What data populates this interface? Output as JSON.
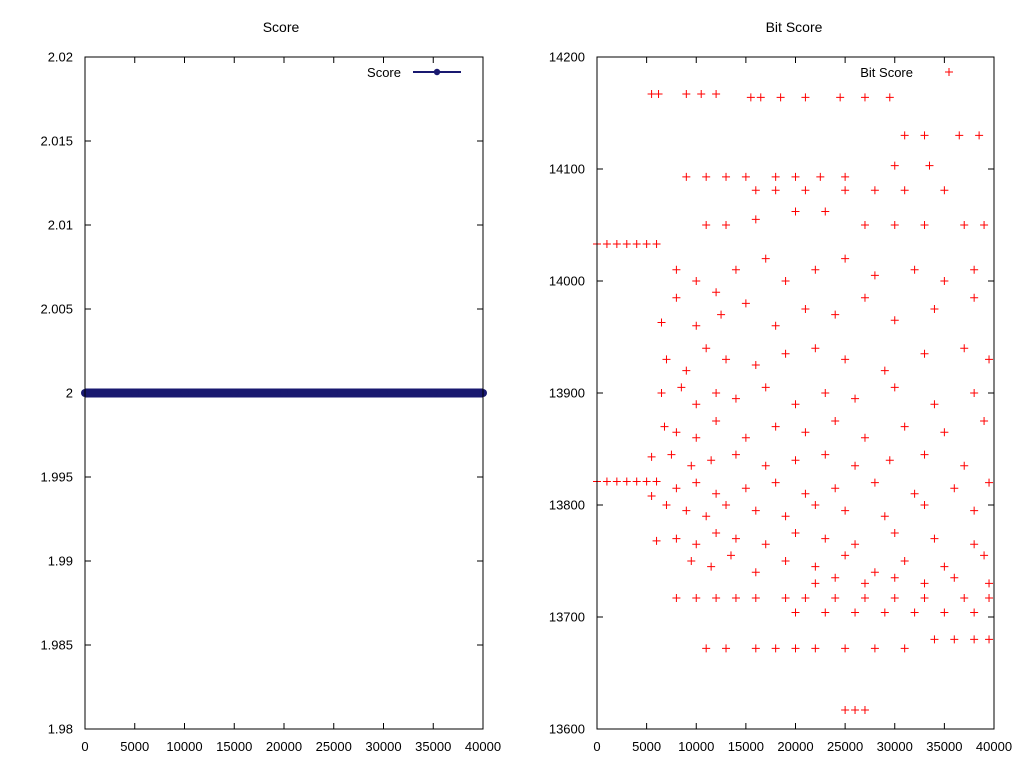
{
  "chart_data": [
    {
      "type": "line",
      "title": "Score",
      "xlabel": "",
      "ylabel": "",
      "xlim": [
        0,
        40000
      ],
      "ylim": [
        1.98,
        2.02
      ],
      "x_ticks": [
        "0",
        "5000",
        "10000",
        "15000",
        "20000",
        "25000",
        "30000",
        "35000",
        "40000"
      ],
      "y_ticks": [
        "1.98",
        "1.985",
        "1.99",
        "1.995",
        "2",
        "2.005",
        "2.01",
        "2.015",
        "2.02"
      ],
      "grid": false,
      "legend": "top-right",
      "series": [
        {
          "name": "Score",
          "color": "#191970",
          "marker": "filled-circle",
          "x": [
            0,
            5000,
            10000,
            15000,
            20000,
            25000,
            30000,
            35000,
            40000
          ],
          "y": [
            2,
            2,
            2,
            2,
            2,
            2,
            2,
            2,
            2
          ]
        }
      ]
    },
    {
      "type": "scatter",
      "title": "Bit Score",
      "xlabel": "",
      "ylabel": "",
      "xlim": [
        0,
        40000
      ],
      "ylim": [
        13600,
        14200
      ],
      "x_ticks": [
        "0",
        "5000",
        "10000",
        "15000",
        "20000",
        "25000",
        "30000",
        "35000",
        "40000"
      ],
      "y_ticks": [
        "13600",
        "13700",
        "13800",
        "13900",
        "14000",
        "14100",
        "14200"
      ],
      "grid": false,
      "legend": "top-right",
      "series": [
        {
          "name": "Bit Score",
          "color": "#ff0000",
          "marker": "plus",
          "points": [
            [
              0,
              14033
            ],
            [
              1000,
              14033
            ],
            [
              2000,
              14033
            ],
            [
              3000,
              14033
            ],
            [
              4000,
              14033
            ],
            [
              5000,
              14033
            ],
            [
              6000,
              14033
            ],
            [
              0,
              13821
            ],
            [
              1000,
              13821
            ],
            [
              2000,
              13821
            ],
            [
              3000,
              13821
            ],
            [
              4000,
              13821
            ],
            [
              5000,
              13821
            ],
            [
              6000,
              13821
            ],
            [
              5500,
              14167
            ],
            [
              6200,
              14167
            ],
            [
              9000,
              14167
            ],
            [
              10500,
              14167
            ],
            [
              12000,
              14167
            ],
            [
              15500,
              14164
            ],
            [
              16500,
              14164
            ],
            [
              18500,
              14164
            ],
            [
              21000,
              14164
            ],
            [
              24500,
              14164
            ],
            [
              27000,
              14164
            ],
            [
              29500,
              14164
            ],
            [
              31000,
              14130
            ],
            [
              33000,
              14130
            ],
            [
              36500,
              14130
            ],
            [
              38500,
              14130
            ],
            [
              9000,
              14093
            ],
            [
              11000,
              14093
            ],
            [
              13000,
              14093
            ],
            [
              15000,
              14093
            ],
            [
              18000,
              14093
            ],
            [
              20000,
              14093
            ],
            [
              22500,
              14093
            ],
            [
              25000,
              14093
            ],
            [
              30000,
              14103
            ],
            [
              33500,
              14103
            ],
            [
              16000,
              14081
            ],
            [
              18000,
              14081
            ],
            [
              21000,
              14081
            ],
            [
              25000,
              14081
            ],
            [
              28000,
              14081
            ],
            [
              31000,
              14081
            ],
            [
              35000,
              14081
            ],
            [
              11000,
              14050
            ],
            [
              13000,
              14050
            ],
            [
              16000,
              14055
            ],
            [
              20000,
              14062
            ],
            [
              23000,
              14062
            ],
            [
              27000,
              14050
            ],
            [
              30000,
              14050
            ],
            [
              33000,
              14050
            ],
            [
              37000,
              14050
            ],
            [
              39000,
              14050
            ],
            [
              8000,
              14010
            ],
            [
              10000,
              14000
            ],
            [
              12000,
              13990
            ],
            [
              14000,
              14010
            ],
            [
              17000,
              14020
            ],
            [
              19000,
              14000
            ],
            [
              22000,
              14010
            ],
            [
              25000,
              14020
            ],
            [
              28000,
              14005
            ],
            [
              32000,
              14010
            ],
            [
              35000,
              14000
            ],
            [
              38000,
              14010
            ],
            [
              6500,
              13963
            ],
            [
              8000,
              13985
            ],
            [
              10000,
              13960
            ],
            [
              12500,
              13970
            ],
            [
              15000,
              13980
            ],
            [
              18000,
              13960
            ],
            [
              21000,
              13975
            ],
            [
              24000,
              13970
            ],
            [
              27000,
              13985
            ],
            [
              30000,
              13965
            ],
            [
              34000,
              13975
            ],
            [
              38000,
              13985
            ],
            [
              7000,
              13930
            ],
            [
              9000,
              13920
            ],
            [
              11000,
              13940
            ],
            [
              13000,
              13930
            ],
            [
              16000,
              13925
            ],
            [
              19000,
              13935
            ],
            [
              22000,
              13940
            ],
            [
              25000,
              13930
            ],
            [
              29000,
              13920
            ],
            [
              33000,
              13935
            ],
            [
              37000,
              13940
            ],
            [
              39500,
              13930
            ],
            [
              6500,
              13900
            ],
            [
              8500,
              13905
            ],
            [
              10000,
              13890
            ],
            [
              12000,
              13900
            ],
            [
              14000,
              13895
            ],
            [
              17000,
              13905
            ],
            [
              20000,
              13890
            ],
            [
              23000,
              13900
            ],
            [
              26000,
              13895
            ],
            [
              30000,
              13905
            ],
            [
              34000,
              13890
            ],
            [
              38000,
              13900
            ],
            [
              6800,
              13870
            ],
            [
              8000,
              13865
            ],
            [
              10000,
              13860
            ],
            [
              12000,
              13875
            ],
            [
              15000,
              13860
            ],
            [
              18000,
              13870
            ],
            [
              21000,
              13865
            ],
            [
              24000,
              13875
            ],
            [
              27000,
              13860
            ],
            [
              31000,
              13870
            ],
            [
              35000,
              13865
            ],
            [
              39000,
              13875
            ],
            [
              5500,
              13843
            ],
            [
              7500,
              13845
            ],
            [
              9500,
              13835
            ],
            [
              11500,
              13840
            ],
            [
              14000,
              13845
            ],
            [
              17000,
              13835
            ],
            [
              20000,
              13840
            ],
            [
              23000,
              13845
            ],
            [
              26000,
              13835
            ],
            [
              29500,
              13840
            ],
            [
              33000,
              13845
            ],
            [
              37000,
              13835
            ],
            [
              8000,
              13815
            ],
            [
              10000,
              13820
            ],
            [
              12000,
              13810
            ],
            [
              15000,
              13815
            ],
            [
              18000,
              13820
            ],
            [
              21000,
              13810
            ],
            [
              24000,
              13815
            ],
            [
              28000,
              13820
            ],
            [
              32000,
              13810
            ],
            [
              36000,
              13815
            ],
            [
              39500,
              13820
            ],
            [
              5500,
              13808
            ],
            [
              7000,
              13800
            ],
            [
              9000,
              13795
            ],
            [
              11000,
              13790
            ],
            [
              13000,
              13800
            ],
            [
              16000,
              13795
            ],
            [
              19000,
              13790
            ],
            [
              22000,
              13800
            ],
            [
              25000,
              13795
            ],
            [
              29000,
              13790
            ],
            [
              33000,
              13800
            ],
            [
              38000,
              13795
            ],
            [
              8000,
              13770
            ],
            [
              10000,
              13765
            ],
            [
              12000,
              13775
            ],
            [
              14000,
              13770
            ],
            [
              17000,
              13765
            ],
            [
              20000,
              13775
            ],
            [
              23000,
              13770
            ],
            [
              26000,
              13765
            ],
            [
              30000,
              13775
            ],
            [
              34000,
              13770
            ],
            [
              38000,
              13765
            ],
            [
              6000,
              13768
            ],
            [
              9500,
              13750
            ],
            [
              11500,
              13745
            ],
            [
              13500,
              13755
            ],
            [
              16000,
              13740
            ],
            [
              19000,
              13750
            ],
            [
              22000,
              13745
            ],
            [
              25000,
              13755
            ],
            [
              28000,
              13740
            ],
            [
              31000,
              13750
            ],
            [
              35000,
              13745
            ],
            [
              39000,
              13755
            ],
            [
              22000,
              13730
            ],
            [
              24000,
              13735
            ],
            [
              27000,
              13730
            ],
            [
              30000,
              13735
            ],
            [
              33000,
              13730
            ],
            [
              36000,
              13735
            ],
            [
              39500,
              13730
            ],
            [
              8000,
              13717
            ],
            [
              10000,
              13717
            ],
            [
              12000,
              13717
            ],
            [
              14000,
              13717
            ],
            [
              16000,
              13717
            ],
            [
              19000,
              13717
            ],
            [
              21000,
              13717
            ],
            [
              24000,
              13717
            ],
            [
              27000,
              13717
            ],
            [
              30000,
              13717
            ],
            [
              33000,
              13717
            ],
            [
              37000,
              13717
            ],
            [
              39500,
              13717
            ],
            [
              20000,
              13704
            ],
            [
              23000,
              13704
            ],
            [
              26000,
              13704
            ],
            [
              29000,
              13704
            ],
            [
              32000,
              13704
            ],
            [
              35000,
              13704
            ],
            [
              38000,
              13704
            ],
            [
              11000,
              13672
            ],
            [
              13000,
              13672
            ],
            [
              16000,
              13672
            ],
            [
              18000,
              13672
            ],
            [
              20000,
              13672
            ],
            [
              22000,
              13672
            ],
            [
              25000,
              13672
            ],
            [
              28000,
              13672
            ],
            [
              31000,
              13672
            ],
            [
              34000,
              13680
            ],
            [
              36000,
              13680
            ],
            [
              38000,
              13680
            ],
            [
              39500,
              13680
            ],
            [
              25000,
              13617
            ],
            [
              26000,
              13617
            ],
            [
              27000,
              13617
            ]
          ]
        }
      ]
    }
  ]
}
